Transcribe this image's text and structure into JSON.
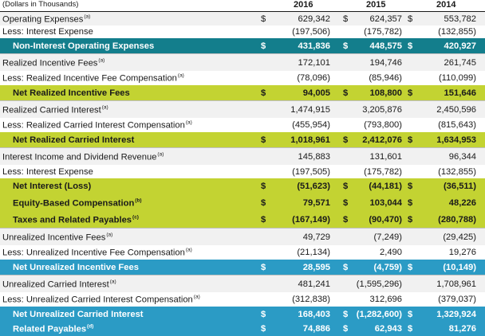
{
  "header": {
    "units": "(Dollars in Thousands)",
    "years": [
      "2016",
      "2015",
      "2014"
    ]
  },
  "rows": [
    {
      "label": "Operating Expenses",
      "note": "(a)",
      "dollar": "$",
      "values": [
        "629,342",
        "624,357",
        "553,782"
      ],
      "style": "plain"
    },
    {
      "label": "Less: Interest Expense",
      "note": "",
      "dollar": "",
      "values": [
        "(197,506)",
        "(175,782)",
        "(132,855)"
      ],
      "style": "plain"
    },
    {
      "label": "Non-Interest Operating Expenses",
      "note": "",
      "dollar": "$",
      "values": [
        "431,836",
        "448,575",
        "420,927"
      ],
      "style": "teal"
    },
    {
      "label": "Realized Incentive Fees",
      "note": "(a)",
      "dollar": "",
      "values": [
        "172,101",
        "194,746",
        "261,745"
      ],
      "style": "plain"
    },
    {
      "label": "Less: Realized Incentive Fee Compensation",
      "note": "(a)",
      "dollar": "",
      "values": [
        "(78,096)",
        "(85,946)",
        "(110,099)"
      ],
      "style": "plain"
    },
    {
      "label": "Net Realized Incentive Fees",
      "note": "",
      "dollar": "$",
      "values": [
        "94,005",
        "108,800",
        "151,646"
      ],
      "style": "lime"
    },
    {
      "label": "Realized Carried Interest",
      "note": "(a)",
      "dollar": "",
      "values": [
        "1,474,915",
        "3,205,876",
        "2,450,596"
      ],
      "style": "plain"
    },
    {
      "label": "Less: Realized Carried Interest Compensation",
      "note": "(a)",
      "dollar": "",
      "values": [
        "(455,954)",
        "(793,800)",
        "(815,643)"
      ],
      "style": "plain"
    },
    {
      "label": "Net Realized Carried Interest",
      "note": "",
      "dollar": "$",
      "values": [
        "1,018,961",
        "2,412,076",
        "1,634,953"
      ],
      "style": "lime"
    },
    {
      "label": "Interest Income and Dividend Revenue",
      "note": "(a)",
      "dollar": "",
      "values": [
        "145,883",
        "131,601",
        "96,344"
      ],
      "style": "plain"
    },
    {
      "label": "Less: Interest Expense",
      "note": "",
      "dollar": "",
      "values": [
        "(197,505)",
        "(175,782)",
        "(132,855)"
      ],
      "style": "plain"
    },
    {
      "label": "Net Interest (Loss)",
      "note": "",
      "dollar": "$",
      "values": [
        "(51,623)",
        "(44,181)",
        "(36,511)"
      ],
      "style": "lime"
    },
    {
      "label": "Equity-Based Compensation",
      "note": "(b)",
      "dollar": "$",
      "values": [
        "79,571",
        "103,044",
        "48,226"
      ],
      "style": "lime"
    },
    {
      "label": "Taxes and Related Payables",
      "note": "(c)",
      "dollar": "$",
      "values": [
        "(167,149)",
        "(90,470)",
        "(280,788)"
      ],
      "style": "lime"
    },
    {
      "label": "Unrealized Incentive Fees",
      "note": "(a)",
      "dollar": "",
      "values": [
        "49,729",
        "(7,249)",
        "(29,425)"
      ],
      "style": "plain"
    },
    {
      "label": "Less: Unrealized Incentive Fee Compensation",
      "note": "(a)",
      "dollar": "",
      "values": [
        "(21,134)",
        "2,490",
        "19,276"
      ],
      "style": "plain"
    },
    {
      "label": "Net Unrealized Incentive Fees",
      "note": "",
      "dollar": "$",
      "values": [
        "28,595",
        "(4,759)",
        "(10,149)"
      ],
      "style": "sky"
    },
    {
      "label": "Unrealized Carried Interest",
      "note": "(a)",
      "dollar": "",
      "values": [
        "481,241",
        "(1,595,296)",
        "1,708,961"
      ],
      "style": "plain"
    },
    {
      "label": "Less: Unrealized Carried Interest Compensation",
      "note": "(a)",
      "dollar": "",
      "values": [
        "(312,838)",
        "312,696",
        "(379,037)"
      ],
      "style": "plain"
    },
    {
      "label": "Net Unrealized Carried Interest",
      "note": "",
      "dollar": "$",
      "values": [
        "168,403",
        "(1,282,600)",
        "1,329,924"
      ],
      "style": "sky"
    },
    {
      "label": "Related Payables",
      "note": "(d)",
      "dollar": "$",
      "values": [
        "74,886",
        "62,943",
        "81,276"
      ],
      "style": "sky"
    }
  ]
}
